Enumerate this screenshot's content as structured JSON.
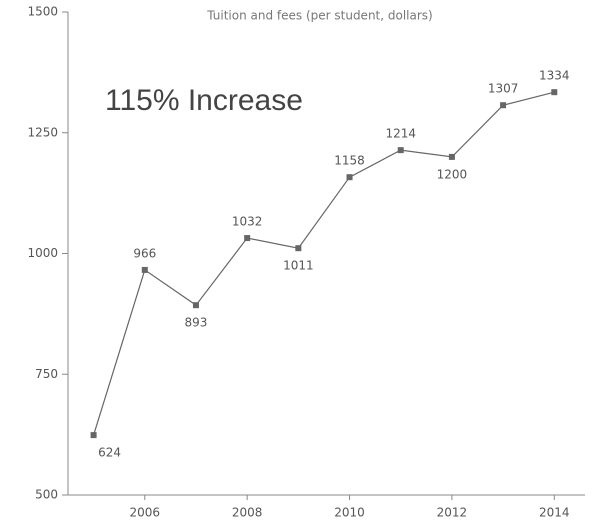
{
  "chart_data": {
    "type": "line",
    "title": "Tuition and fees (per student, dollars)",
    "annotation": "115% Increase",
    "x": [
      2005,
      2006,
      2007,
      2008,
      2009,
      2010,
      2011,
      2012,
      2013,
      2014
    ],
    "series": [
      {
        "name": "Tuition and fees",
        "color": "#666666",
        "values": [
          624,
          966,
          893,
          1032,
          1011,
          1158,
          1214,
          1200,
          1307,
          1334
        ]
      }
    ],
    "xlim": [
      2004.5,
      2014.6
    ],
    "xticks": [
      2006,
      2008,
      2010,
      2012,
      2014
    ],
    "ylim": [
      500,
      1500
    ],
    "yticks": [
      500,
      750,
      1000,
      1250,
      1500
    ]
  }
}
